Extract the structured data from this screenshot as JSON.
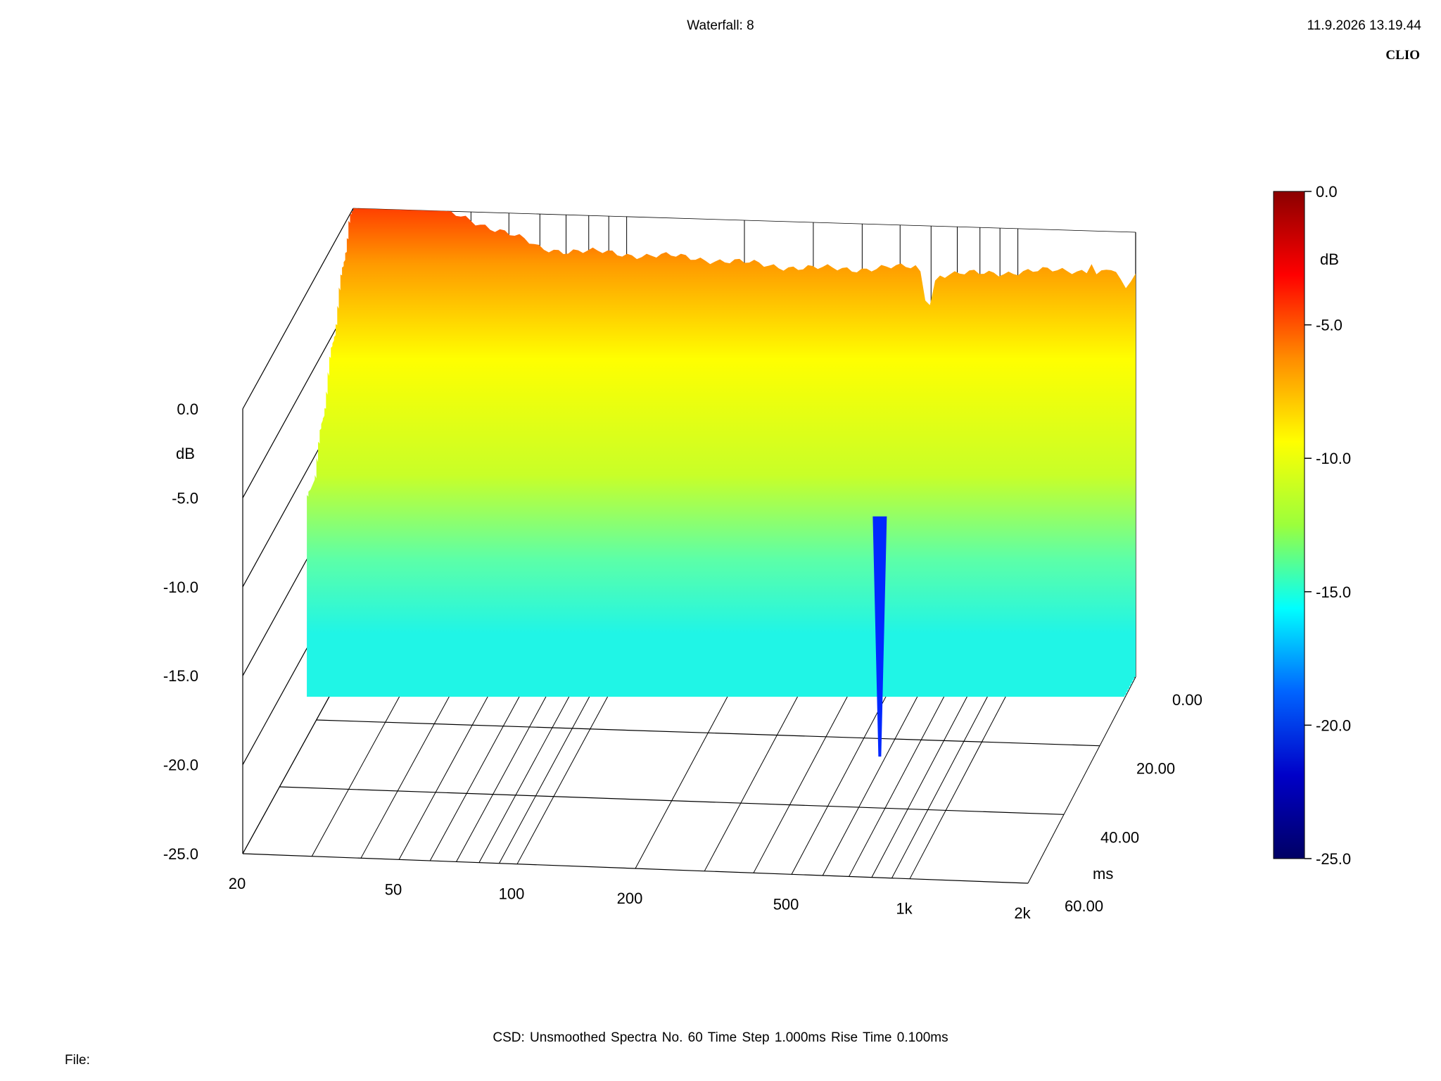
{
  "header": {
    "title": "Waterfall: 8",
    "timestamp": "11.9.2026 13.19.44",
    "brand": "CLIO"
  },
  "footer": {
    "settings": "CSD:   Unsmoothed   Spectra No. 60   Time Step 1.000ms   Rise Time 0.100ms",
    "file_label": "File:"
  },
  "chart_data": {
    "type": "waterfall",
    "title": "Waterfall: 8",
    "x_axis": {
      "label": "",
      "scale": "log",
      "range": [
        20,
        2000
      ],
      "ticks": [
        20,
        50,
        100,
        200,
        500,
        1000,
        2000
      ],
      "tick_labels": [
        "20",
        "50",
        "100",
        "200",
        "500",
        "1k",
        "2k"
      ]
    },
    "y_axis": {
      "label": "dB",
      "range": [
        -25,
        0
      ],
      "ticks": [
        0,
        -5,
        -10,
        -15,
        -20,
        -25
      ],
      "tick_labels": [
        "0.0",
        "-5.0",
        "-10.0",
        "-15.0",
        "-20.0",
        "-25.0"
      ]
    },
    "z_axis": {
      "label": "ms",
      "range": [
        0,
        60
      ],
      "ticks": [
        0,
        20,
        40,
        60
      ],
      "tick_labels": [
        "0.00",
        "20.00",
        "40.00",
        "60.00"
      ]
    },
    "colorbar": {
      "label": "dB",
      "range": [
        -25,
        0
      ],
      "ticks": [
        0,
        -5,
        -10,
        -15,
        -20,
        -25
      ],
      "tick_labels": [
        "0.0",
        "-5.0",
        "-10.0",
        "-15.0",
        "-20.0",
        "-25.0"
      ],
      "colors": [
        "#8b0000",
        "#ff0000",
        "#ff8c00",
        "#ffff00",
        "#9bff3c",
        "#00ffff",
        "#0064ff",
        "#0000c8",
        "#000064"
      ]
    },
    "spectra_count": 60,
    "time_step_ms": 1.0,
    "rise_time_ms": 0.1,
    "front_spectrum": [
      {
        "f": 20,
        "db": -1.3
      },
      {
        "f": 25,
        "db": -1.4
      },
      {
        "f": 30,
        "db": -1.6
      },
      {
        "f": 40,
        "db": -1.7
      },
      {
        "f": 50,
        "db": -1.8
      },
      {
        "f": 70,
        "db": -2.0
      },
      {
        "f": 100,
        "db": -2.1
      },
      {
        "f": 150,
        "db": -2.2
      },
      {
        "f": 200,
        "db": -2.4
      },
      {
        "f": 300,
        "db": -2.6
      },
      {
        "f": 400,
        "db": -2.5
      },
      {
        "f": 500,
        "db": -2.4
      },
      {
        "f": 560,
        "db": -2.3
      },
      {
        "f": 590,
        "db": -4.8
      },
      {
        "f": 620,
        "db": -2.7
      },
      {
        "f": 800,
        "db": -2.6
      },
      {
        "f": 1000,
        "db": -2.4
      },
      {
        "f": 1300,
        "db": -2.3
      },
      {
        "f": 1500,
        "db": -2.2
      },
      {
        "f": 1520,
        "db": -0.3
      },
      {
        "f": 1560,
        "db": -2.6
      },
      {
        "f": 1700,
        "db": -2.0
      },
      {
        "f": 1900,
        "db": -3.2
      },
      {
        "f": 2000,
        "db": -2.5
      }
    ],
    "rear_floor_db": -11.5,
    "notch": {
      "f": 580,
      "db_min": -25
    }
  }
}
